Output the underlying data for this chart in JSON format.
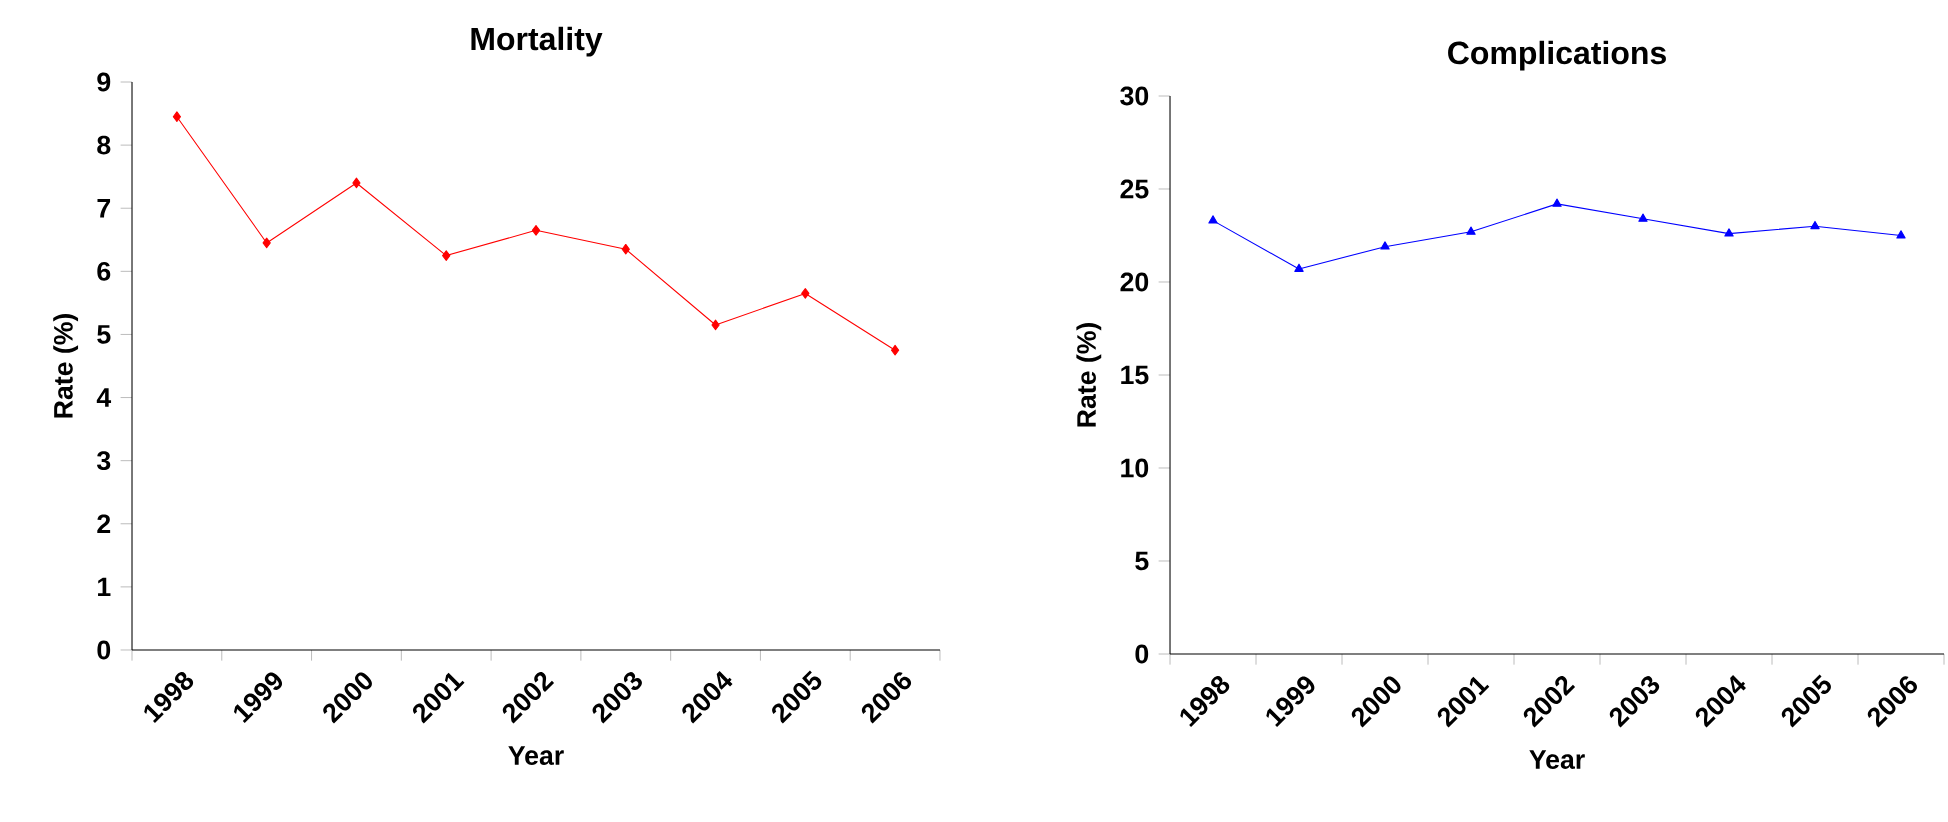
{
  "chart_data": [
    {
      "type": "line",
      "title": "Mortality",
      "xlabel": "Year",
      "ylabel": "Rate (%)",
      "categories": [
        "1998",
        "1999",
        "2000",
        "2001",
        "2002",
        "2003",
        "2004",
        "2005",
        "2006"
      ],
      "series": [
        {
          "color": "#ff0000",
          "marker": "diamond",
          "values": [
            8.45,
            6.45,
            7.4,
            6.25,
            6.65,
            6.35,
            5.15,
            5.65,
            4.75
          ]
        }
      ],
      "ylim": [
        0,
        9
      ],
      "yticks": [
        0,
        1,
        2,
        3,
        4,
        5,
        6,
        7,
        8,
        9
      ],
      "grid": false,
      "line_style": "solid"
    },
    {
      "type": "line",
      "title": "Complications",
      "xlabel": "Year",
      "ylabel": "Rate (%)",
      "categories": [
        "1998",
        "1999",
        "2000",
        "2001",
        "2002",
        "2003",
        "2004",
        "2005",
        "2006"
      ],
      "series": [
        {
          "color": "#0000ff",
          "marker": "triangle",
          "values": [
            23.3,
            20.7,
            21.9,
            22.7,
            24.2,
            23.4,
            22.6,
            23.0,
            22.5
          ]
        }
      ],
      "ylim": [
        0,
        30
      ],
      "yticks": [
        0,
        5,
        10,
        15,
        20,
        25,
        30
      ],
      "grid": false,
      "line_style": "solid"
    }
  ]
}
